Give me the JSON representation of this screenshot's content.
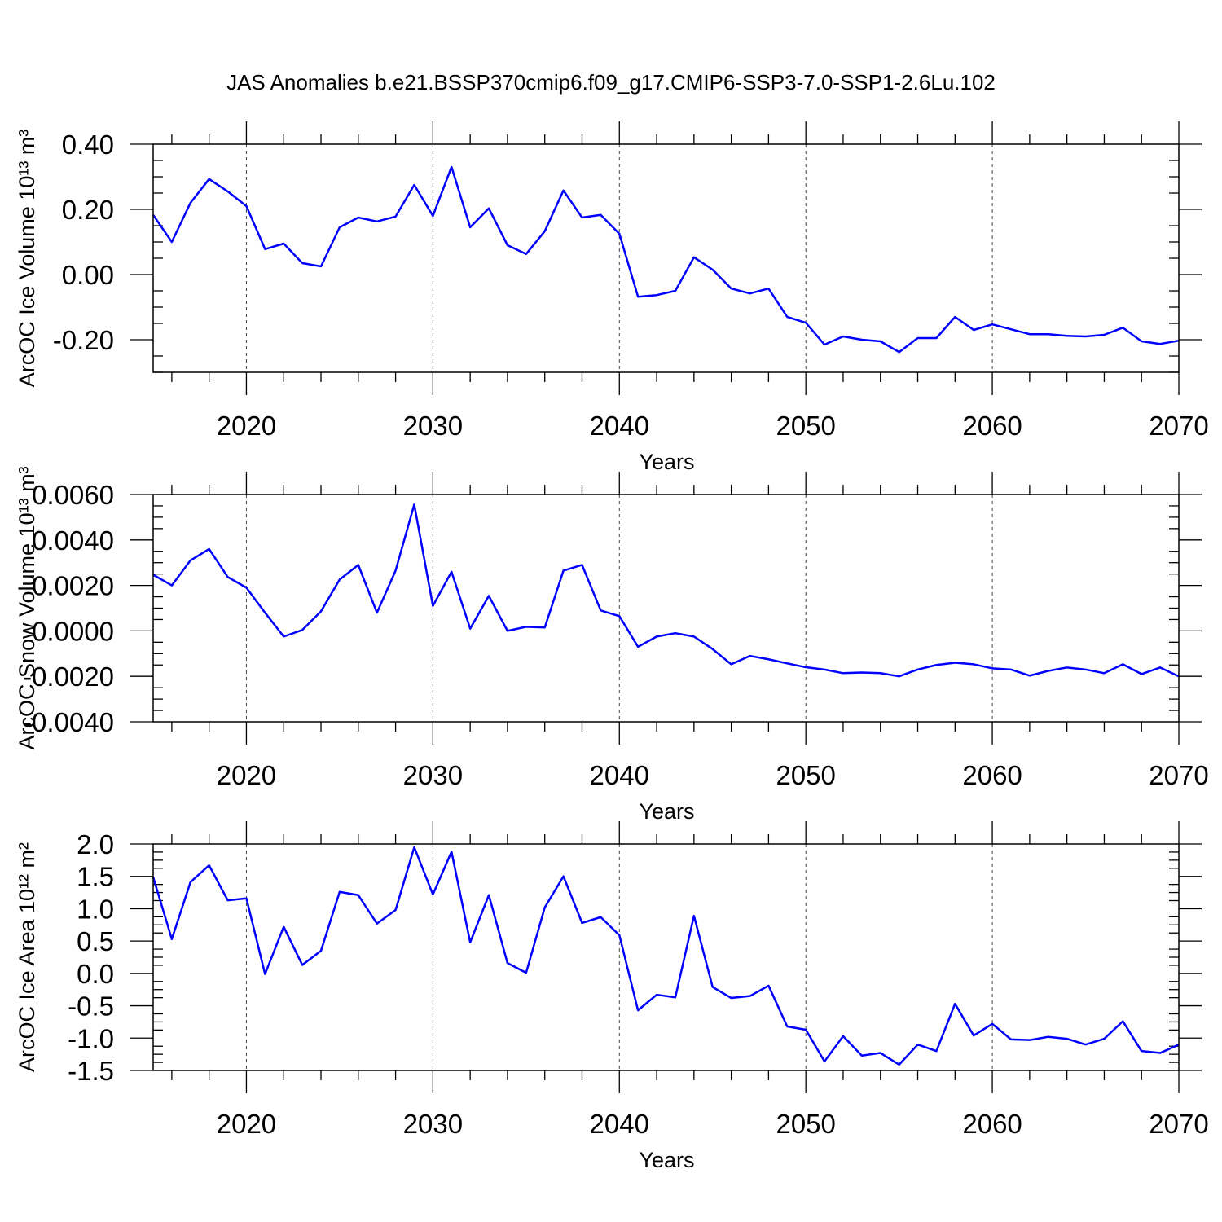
{
  "chart_data": [
    {
      "type": "line",
      "title": "JAS Anomalies b.e21.BSSP370cmip6.f09_g17.CMIP6-SSP3-7.0-SSP1-2.6Lu.102",
      "xlabel": "Years",
      "ylabel": "ArcOC Ice Volume 10¹³ m³",
      "x": [
        2015,
        2016,
        2017,
        2018,
        2019,
        2020,
        2021,
        2022,
        2023,
        2024,
        2025,
        2026,
        2027,
        2028,
        2029,
        2030,
        2031,
        2032,
        2033,
        2034,
        2035,
        2036,
        2037,
        2038,
        2039,
        2040,
        2041,
        2042,
        2043,
        2044,
        2045,
        2046,
        2047,
        2048,
        2049,
        2050,
        2051,
        2052,
        2053,
        2054,
        2055,
        2056,
        2057,
        2058,
        2059,
        2060,
        2061,
        2062,
        2063,
        2064,
        2065,
        2066,
        2067,
        2068,
        2069,
        2070
      ],
      "series": [
        {
          "color": "#0000ff",
          "values": [
            0.183,
            0.1,
            0.22,
            0.293,
            0.255,
            0.21,
            0.078,
            0.095,
            0.035,
            0.025,
            0.145,
            0.175,
            0.163,
            0.178,
            0.275,
            0.18,
            0.33,
            0.145,
            0.203,
            0.09,
            0.063,
            0.133,
            0.258,
            0.175,
            0.183,
            0.125,
            -0.068,
            -0.063,
            -0.05,
            0.053,
            0.015,
            -0.043,
            -0.058,
            -0.043,
            -0.13,
            -0.148,
            -0.215,
            -0.19,
            -0.2,
            -0.205,
            -0.238,
            -0.195,
            -0.195,
            -0.13,
            -0.17,
            -0.153,
            -0.168,
            -0.183,
            -0.183,
            -0.188,
            -0.19,
            -0.185,
            -0.163,
            -0.205,
            -0.213,
            -0.203
          ]
        }
      ],
      "xlim": [
        2015,
        2070
      ],
      "xticks": [
        2020,
        2030,
        2040,
        2050,
        2060,
        2070
      ],
      "ylim": [
        -0.3,
        0.4
      ],
      "yticks": [
        {
          "value": 0.4,
          "label": "0.40"
        },
        {
          "value": 0.2,
          "label": "0.20"
        },
        {
          "value": 0,
          "label": "0.00"
        },
        {
          "value": -0.2,
          "label": "-0.20"
        }
      ],
      "xgrid": true
    },
    {
      "type": "line",
      "xlabel": "Years",
      "ylabel": "ArcOC Snow Volume 10¹³ m³",
      "x": [
        2015,
        2016,
        2017,
        2018,
        2019,
        2020,
        2021,
        2022,
        2023,
        2024,
        2025,
        2026,
        2027,
        2028,
        2029,
        2030,
        2031,
        2032,
        2033,
        2034,
        2035,
        2036,
        2037,
        2038,
        2039,
        2040,
        2041,
        2042,
        2043,
        2044,
        2045,
        2046,
        2047,
        2048,
        2049,
        2050,
        2051,
        2052,
        2053,
        2054,
        2055,
        2056,
        2057,
        2058,
        2059,
        2060,
        2061,
        2062,
        2063,
        2064,
        2065,
        2066,
        2067,
        2068,
        2069,
        2070
      ],
      "series": [
        {
          "color": "#0000ff",
          "values": [
            0.00247,
            0.002,
            0.0031,
            0.0036,
            0.00237,
            0.0019,
            0.0008,
            -0.00025,
            4e-05,
            0.00086,
            0.00226,
            0.0029,
            0.0008,
            0.00265,
            0.00556,
            0.0011,
            0.0026,
            0.0001,
            0.00154,
            0,
            0.00018,
            0.00015,
            0.00265,
            0.0029,
            0.0009,
            0.00065,
            -0.0007,
            -0.00025,
            -0.0001,
            -0.00025,
            -0.0008,
            -0.00147,
            -0.0011,
            -0.00125,
            -0.00143,
            -0.0016,
            -0.0017,
            -0.00186,
            -0.00183,
            -0.00186,
            -0.002,
            -0.0017,
            -0.0015,
            -0.0014,
            -0.00147,
            -0.00165,
            -0.0017,
            -0.00197,
            -0.00176,
            -0.00161,
            -0.0017,
            -0.00186,
            -0.00147,
            -0.0019,
            -0.00161,
            -0.002
          ]
        }
      ],
      "xlim": [
        2015,
        2070
      ],
      "xticks": [
        2020,
        2030,
        2040,
        2050,
        2060,
        2070
      ],
      "ylim": [
        -0.004,
        0.006
      ],
      "yticks": [
        {
          "value": 0.006,
          "label": "0.0060"
        },
        {
          "value": 0.004,
          "label": "0.0040"
        },
        {
          "value": 0.002,
          "label": "0.0020"
        },
        {
          "value": 0,
          "label": "0.0000"
        },
        {
          "value": -0.002,
          "label": "-0.0020"
        },
        {
          "value": -0.004,
          "label": "-0.0040"
        }
      ],
      "xgrid": true
    },
    {
      "type": "line",
      "xlabel": "Years",
      "ylabel": "ArcOC Ice Area 10¹² m²",
      "x": [
        2015,
        2016,
        2017,
        2018,
        2019,
        2020,
        2021,
        2022,
        2023,
        2024,
        2025,
        2026,
        2027,
        2028,
        2029,
        2030,
        2031,
        2032,
        2033,
        2034,
        2035,
        2036,
        2037,
        2038,
        2039,
        2040,
        2041,
        2042,
        2043,
        2044,
        2045,
        2046,
        2047,
        2048,
        2049,
        2050,
        2051,
        2052,
        2053,
        2054,
        2055,
        2056,
        2057,
        2058,
        2059,
        2060,
        2061,
        2062,
        2063,
        2064,
        2065,
        2066,
        2067,
        2068,
        2069,
        2070
      ],
      "series": [
        {
          "color": "#0000ff",
          "values": [
            1.49,
            0.53,
            1.41,
            1.67,
            1.13,
            1.16,
            -0.01,
            0.72,
            0.13,
            0.35,
            1.26,
            1.21,
            0.77,
            0.98,
            1.95,
            1.22,
            1.88,
            0.48,
            1.21,
            0.16,
            0.01,
            1.02,
            1.5,
            0.78,
            0.87,
            0.59,
            -0.57,
            -0.33,
            -0.37,
            0.89,
            -0.21,
            -0.38,
            -0.35,
            -0.19,
            -0.82,
            -0.87,
            -1.36,
            -0.97,
            -1.27,
            -1.23,
            -1.41,
            -1.1,
            -1.2,
            -0.47,
            -0.96,
            -0.78,
            -1.02,
            -1.03,
            -0.98,
            -1.01,
            -1.1,
            -1.01,
            -0.74,
            -1.2,
            -1.23,
            -1.1
          ]
        }
      ],
      "xlim": [
        2015,
        2070
      ],
      "xticks": [
        2020,
        2030,
        2040,
        2050,
        2060,
        2070
      ],
      "ylim": [
        -1.5,
        2.0
      ],
      "yticks": [
        {
          "value": 2.0,
          "label": "2.0"
        },
        {
          "value": 1.5,
          "label": "1.5"
        },
        {
          "value": 1.0,
          "label": "1.0"
        },
        {
          "value": 0.5,
          "label": "0.5"
        },
        {
          "value": 0,
          "label": "0.0"
        },
        {
          "value": -0.5,
          "label": "-0.5"
        },
        {
          "value": -1.0,
          "label": "-1.0"
        },
        {
          "value": -1.5,
          "label": "-1.5"
        }
      ],
      "xgrid": true
    }
  ]
}
